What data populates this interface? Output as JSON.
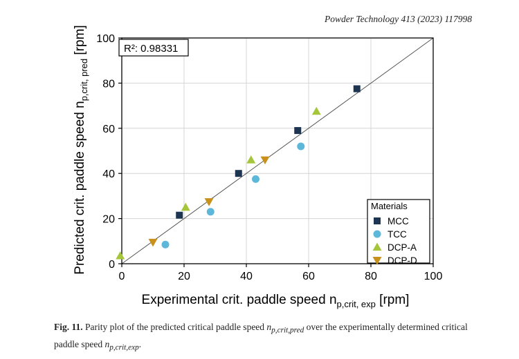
{
  "header": {
    "journal": "Powder Technology 413 (2023) 117998"
  },
  "caption": {
    "fig_label": "Fig. 11.",
    "part1": "Parity plot of the predicted critical paddle speed",
    "var1": "n",
    "var1_sub": "p,crit,pred",
    "part2": "over the experimentally determined critical paddle speed",
    "var2": "n",
    "var2_sub": "p,crit,exp",
    "end": "."
  },
  "chart_data": {
    "type": "scatter",
    "xlabel": {
      "main": "Experimental crit. paddle speed n",
      "sub": "p,crit, exp",
      "unit": " [rpm]"
    },
    "ylabel": {
      "main": "Predicted crit. paddle speed n",
      "sub": "p,crit, pred",
      "unit": " [rpm]"
    },
    "xlim": [
      0,
      100
    ],
    "ylim": [
      0,
      100
    ],
    "xticks": [
      0,
      20,
      40,
      60,
      80,
      100
    ],
    "yticks": [
      0,
      20,
      40,
      60,
      80,
      100
    ],
    "grid": true,
    "annotation": "R²: 0.98331",
    "parity_line": true,
    "legend": {
      "title": "Materials",
      "placement": "bottom-right"
    },
    "series": [
      {
        "name": "MCC",
        "marker": "square",
        "color": "#1d3550",
        "points": [
          [
            18.5,
            21.5
          ],
          [
            37.5,
            40
          ],
          [
            56.5,
            59
          ],
          [
            75.5,
            77.5
          ]
        ]
      },
      {
        "name": "TCC",
        "marker": "circle",
        "color": "#5db7d9",
        "points": [
          [
            14,
            8.5
          ],
          [
            28.5,
            23
          ],
          [
            43,
            37.5
          ],
          [
            57.5,
            52
          ]
        ]
      },
      {
        "name": "DCP-A",
        "marker": "triangle-up",
        "color": "#a5c63b",
        "points": [
          [
            -0.5,
            3.5
          ],
          [
            20.5,
            25
          ],
          [
            41.5,
            46
          ],
          [
            62.5,
            67.5
          ]
        ]
      },
      {
        "name": "DCP-D",
        "marker": "triangle-down",
        "color": "#c9901b",
        "points": [
          [
            10,
            9.5
          ],
          [
            28,
            27.5
          ],
          [
            46,
            46
          ]
        ]
      }
    ]
  }
}
